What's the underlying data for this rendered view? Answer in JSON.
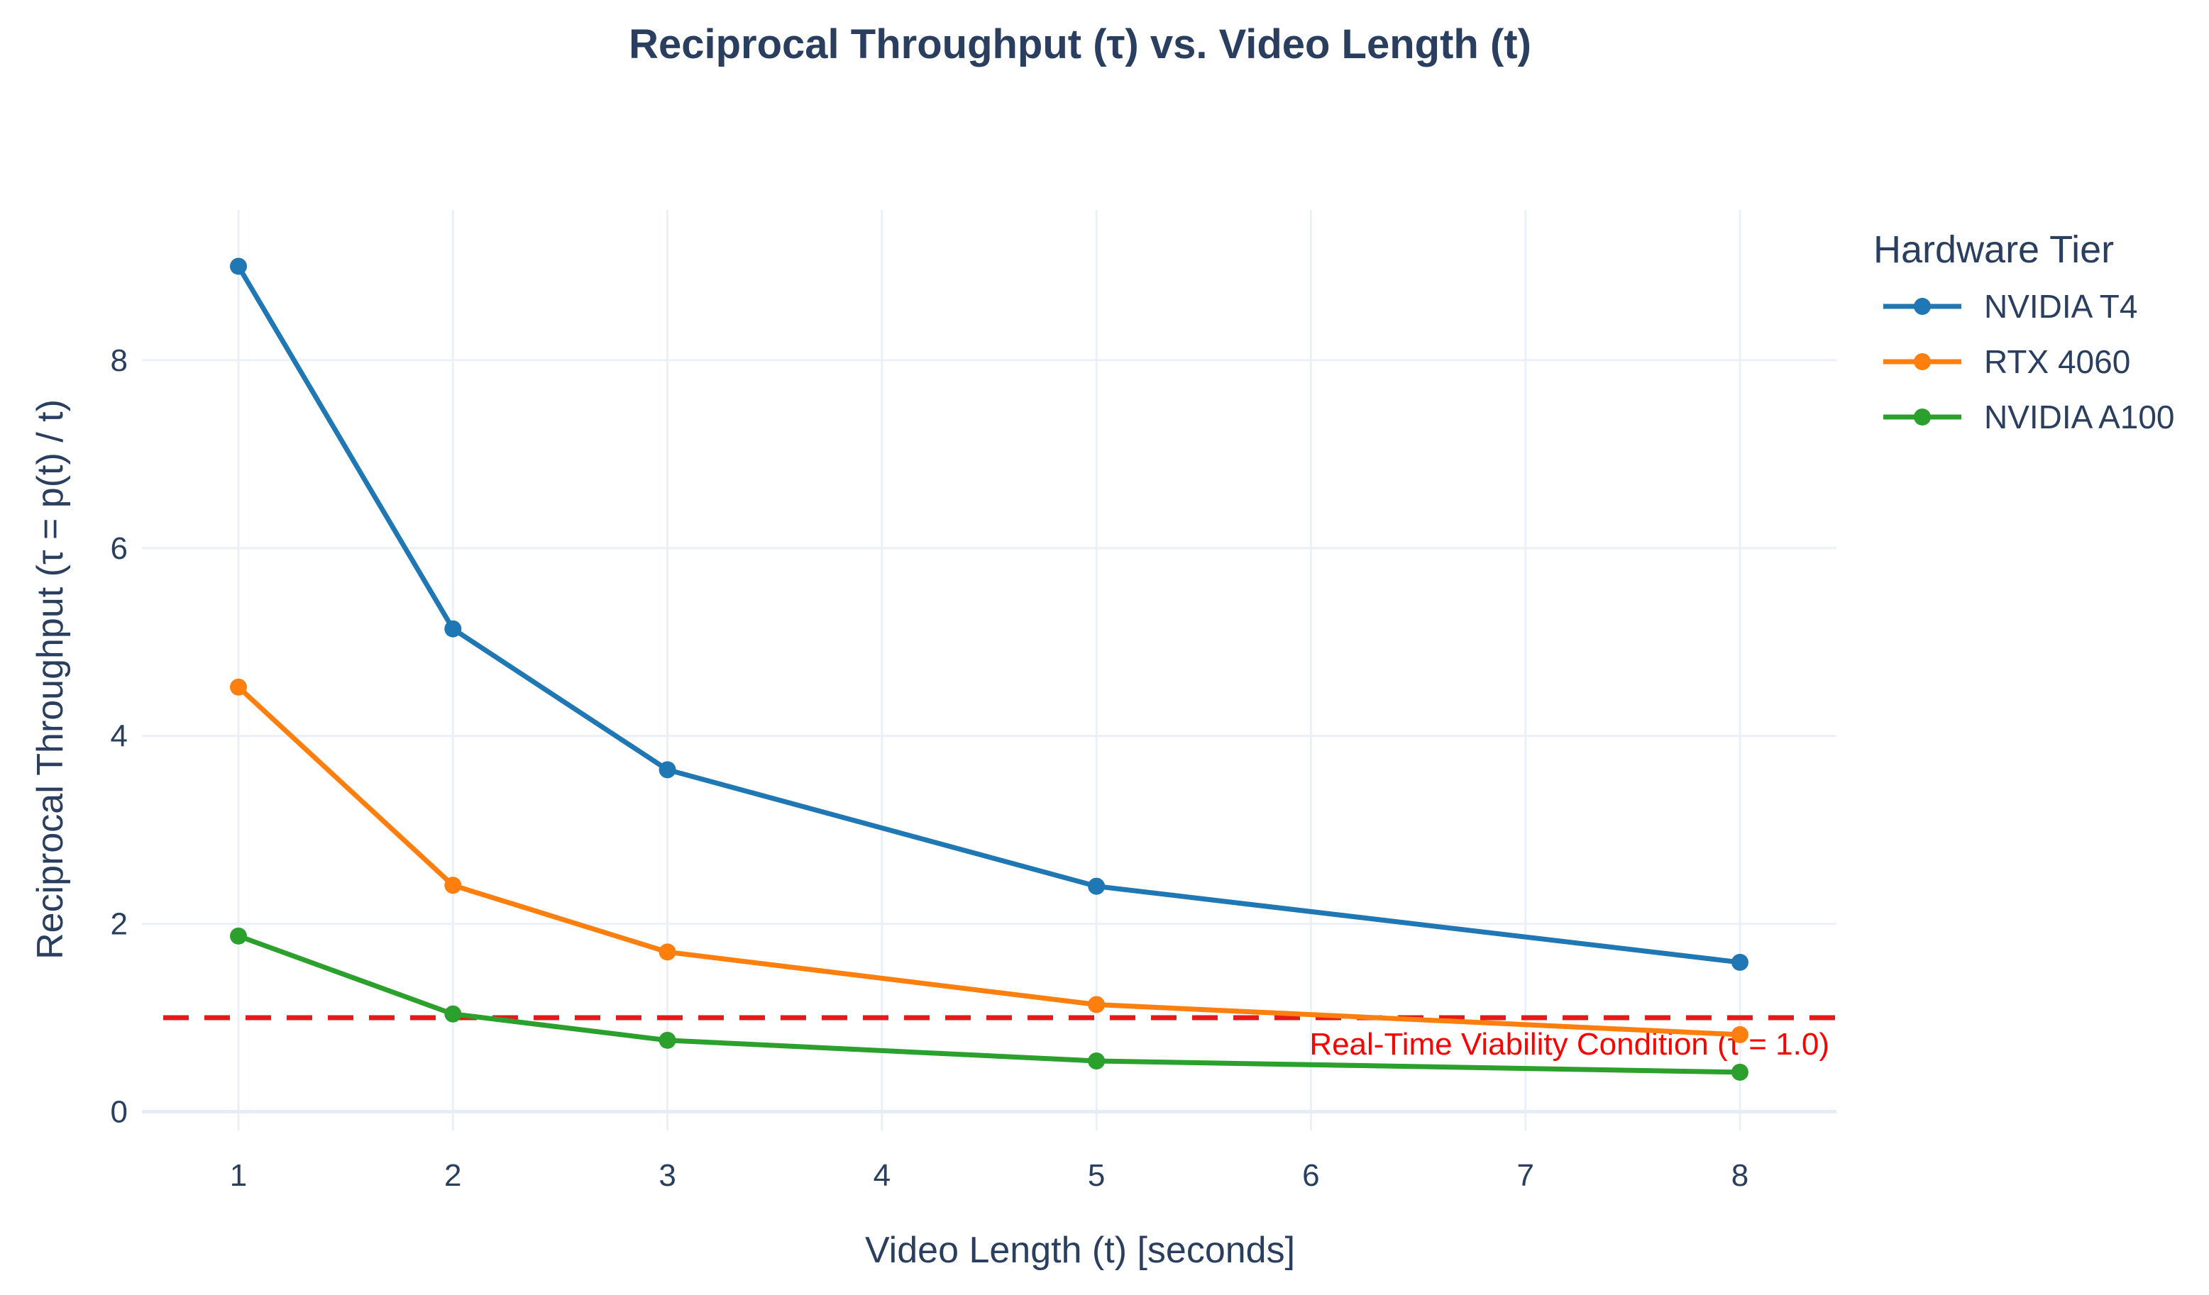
{
  "chart_data": {
    "type": "line",
    "title": "Reciprocal Throughput (τ) vs. Video Length (t)",
    "xlabel": "Video Length (t) [seconds]",
    "ylabel": "Reciprocal Throughput (τ = p(t) / t)",
    "xlim": [
      0.55,
      8.45
    ],
    "ylim": [
      -0.2,
      9.6
    ],
    "xticks": [
      1,
      2,
      3,
      4,
      5,
      6,
      7,
      8
    ],
    "yticks": [
      0,
      2,
      4,
      6,
      8
    ],
    "grid": true,
    "legend": {
      "title": "Hardware Tier",
      "placement": "top-right-outside"
    },
    "series": [
      {
        "name": "NVIDIA T4",
        "color": "#1f77b4",
        "x": [
          1,
          2,
          3,
          5,
          8
        ],
        "y": [
          9.0,
          5.14,
          3.64,
          2.4,
          1.59
        ]
      },
      {
        "name": "RTX 4060",
        "color": "#ff7f0e",
        "x": [
          1,
          2,
          3,
          5,
          8
        ],
        "y": [
          4.52,
          2.41,
          1.7,
          1.14,
          0.82
        ]
      },
      {
        "name": "NVIDIA A100",
        "color": "#2ca02c",
        "x": [
          1,
          2,
          3,
          5,
          8
        ],
        "y": [
          1.87,
          1.04,
          0.76,
          0.54,
          0.42
        ]
      }
    ],
    "reference_line": {
      "y": 1.0,
      "color": "#e31a1c",
      "style": "dashed",
      "label": "Real-Time Viability Condition (τ = 1.0)"
    }
  }
}
